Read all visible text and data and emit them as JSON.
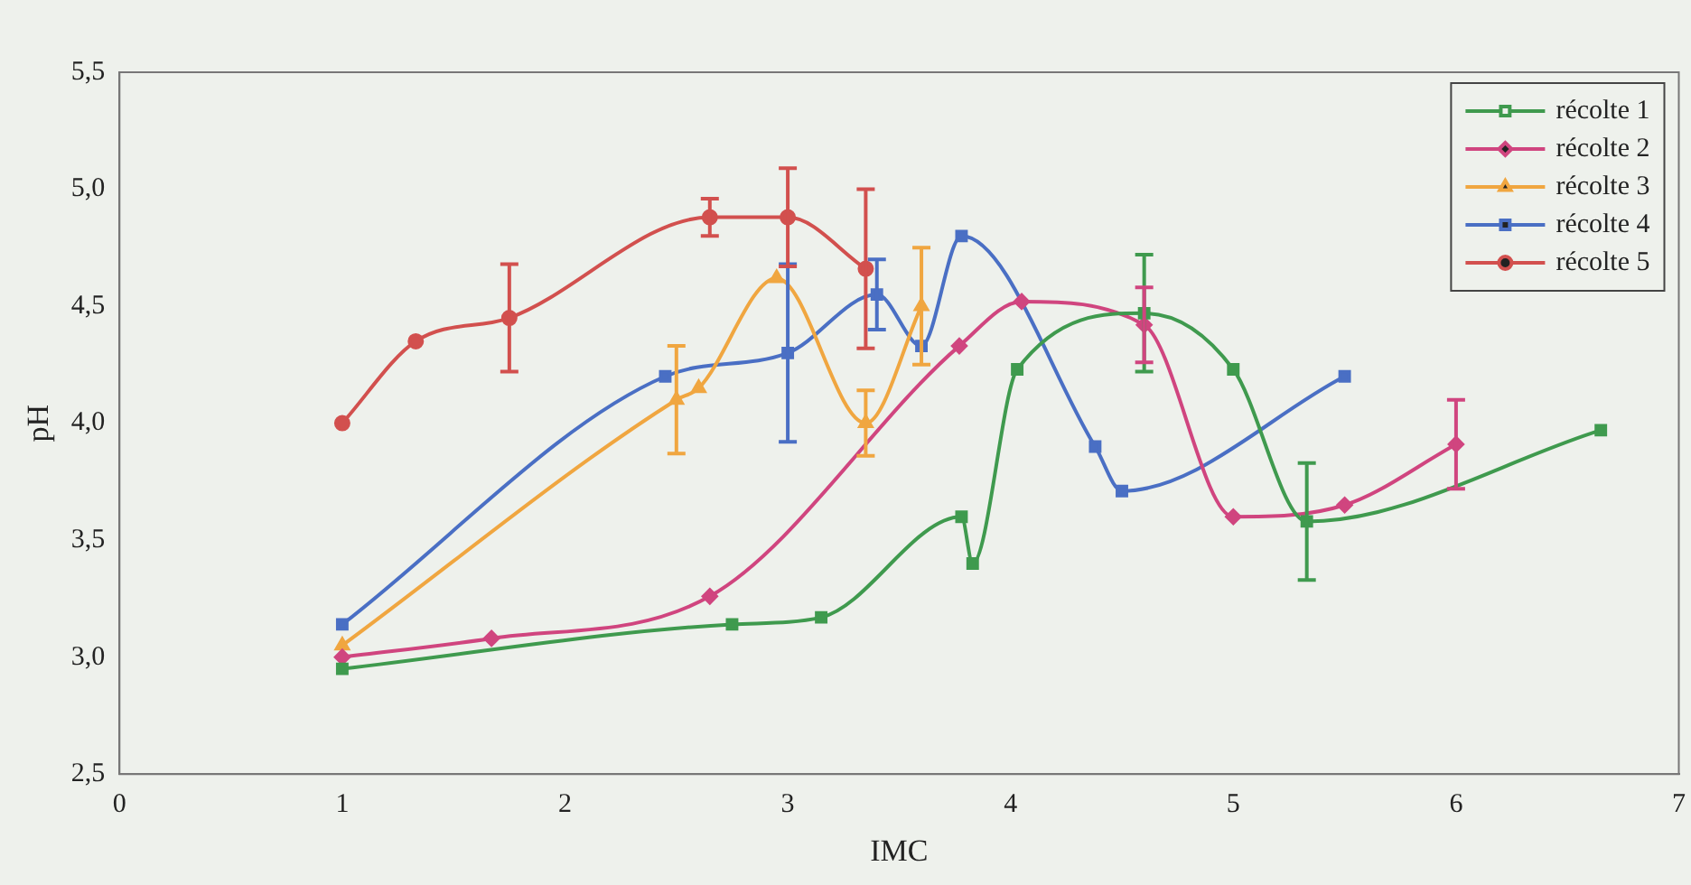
{
  "chart_data": {
    "type": "line",
    "xlabel": "IMC",
    "ylabel": "pH",
    "xlim": [
      0,
      7
    ],
    "xticks": [
      0,
      1,
      2,
      3,
      4,
      5,
      6,
      7
    ],
    "ylim": [
      2.5,
      5.5
    ],
    "yticks": [
      {
        "value": 2.5,
        "label": "2,5"
      },
      {
        "value": 3,
        "label": "3,0"
      },
      {
        "value": 3.5,
        "label": "3,5"
      },
      {
        "value": 4,
        "label": "4,0"
      },
      {
        "value": 4.5,
        "label": "4,5"
      },
      {
        "value": 5,
        "label": "5,0"
      },
      {
        "value": 5.5,
        "label": "5,5"
      }
    ],
    "grid": false,
    "legend": "top right",
    "series": [
      {
        "name": "récolte 1",
        "color": "#3f9a4e",
        "marker": "square",
        "x": [
          1,
          2.75,
          3.15,
          3.78,
          3.83,
          4.03,
          4.6,
          5,
          5.33,
          6.65
        ],
        "values": [
          2.95,
          3.14,
          3.17,
          3.6,
          3.4,
          4.23,
          4.47,
          4.23,
          3.58,
          3.97
        ],
        "errors": [
          null,
          null,
          null,
          null,
          null,
          null,
          0.25,
          null,
          0.25,
          null
        ]
      },
      {
        "name": "récolte 2",
        "color": "#d0457f",
        "marker": "diamond",
        "x": [
          1,
          1.67,
          2.65,
          3.77,
          4.05,
          4.6,
          5,
          5.5,
          6
        ],
        "values": [
          3,
          3.08,
          3.26,
          4.33,
          4.52,
          4.42,
          3.6,
          3.65,
          3.91
        ],
        "errors": [
          null,
          null,
          null,
          null,
          null,
          0.16,
          null,
          null,
          0.19
        ]
      },
      {
        "name": "récolte 3",
        "color": "#f0a640",
        "marker": "triangle",
        "x": [
          1,
          2.5,
          2.6,
          2.95,
          3.35,
          3.6
        ],
        "values": [
          3.05,
          4.1,
          4.15,
          4.62,
          4,
          4.5
        ],
        "errors": [
          null,
          0.23,
          null,
          null,
          0.14,
          0.25
        ]
      },
      {
        "name": "récolte 4",
        "color": "#4a6fc4",
        "marker": "square",
        "x": [
          1,
          2.45,
          3,
          3.4,
          3.6,
          3.78,
          4.38,
          4.5,
          5.5
        ],
        "values": [
          3.14,
          4.2,
          4.3,
          4.55,
          4.33,
          4.8,
          3.9,
          3.71,
          4.2
        ],
        "errors": [
          null,
          null,
          0.38,
          0.15,
          null,
          null,
          null,
          null,
          null
        ]
      },
      {
        "name": "récolte 5",
        "color": "#d2504e",
        "marker": "circle",
        "x": [
          1,
          1.33,
          1.75,
          2.65,
          3,
          3.35
        ],
        "values": [
          4,
          4.35,
          4.45,
          4.88,
          4.88,
          4.66
        ],
        "errors": [
          null,
          null,
          0.23,
          0.08,
          0.21,
          0.34
        ]
      }
    ]
  }
}
